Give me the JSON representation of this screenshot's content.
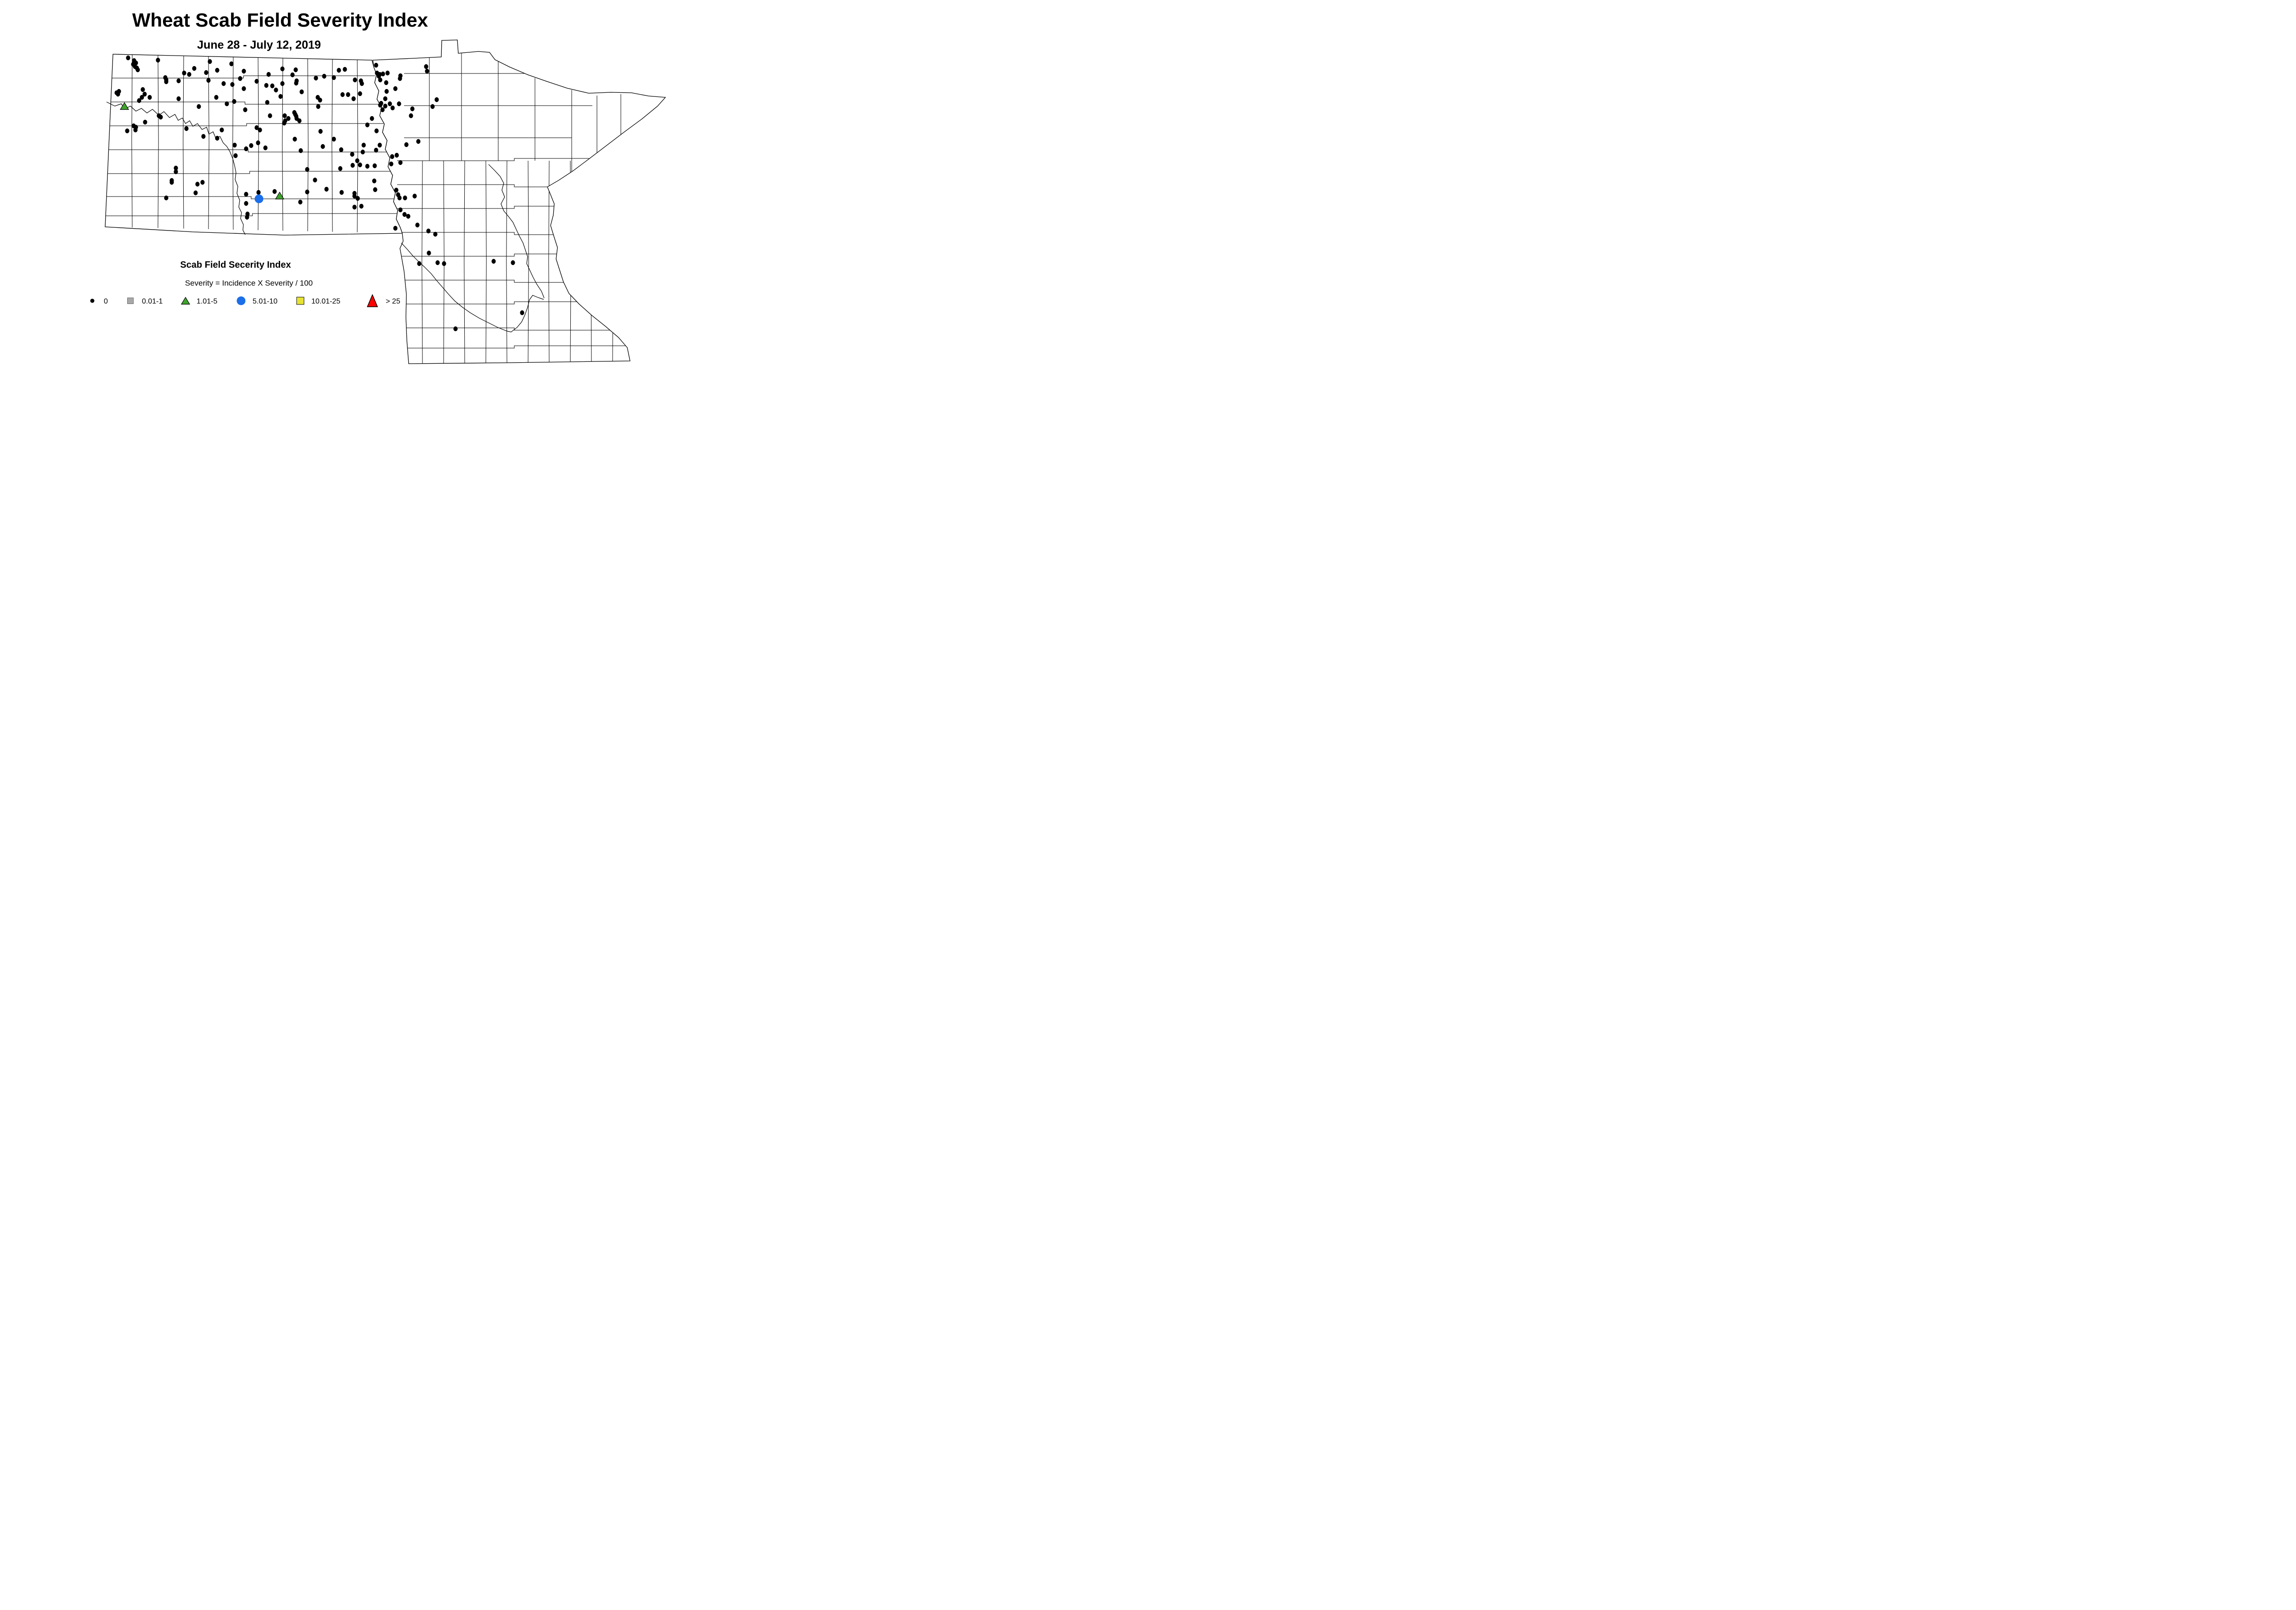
{
  "title": "Wheat Scab Field Severity Index",
  "subtitle": "June 28 - July 12, 2019",
  "legend": {
    "heading": "Scab Field Secerity Index",
    "formula": "Severity = Incidence X Severity / 100",
    "items": [
      {
        "label": "0",
        "shape": "dot",
        "color": "#000000"
      },
      {
        "label": "0.01-1",
        "shape": "square",
        "color": "#A8A8A8"
      },
      {
        "label": "1.01-5",
        "shape": "triangle",
        "color": "#3FA42C"
      },
      {
        "label": "5.01-10",
        "shape": "circle",
        "color": "#1B6FE8"
      },
      {
        "label": "10.01-25",
        "shape": "square",
        "color": "#E8E332"
      },
      {
        "label": "> 25",
        "shape": "triangle",
        "color": "#FF0000"
      }
    ]
  },
  "chart_data": {
    "type": "scatter",
    "subtype": "point-distribution-map",
    "title": "Wheat Scab Field Severity Index",
    "subtitle": "June 28 - July 12, 2019",
    "legend_position": "bottom-left",
    "series": [
      {
        "label": "0",
        "marker": "small-black-dot",
        "points": [
          [
            279,
            126
          ],
          [
            292,
            132
          ],
          [
            296,
            137
          ],
          [
            290,
            140
          ],
          [
            294,
            145
          ],
          [
            298,
            148
          ],
          [
            300,
            152
          ],
          [
            344,
            131
          ],
          [
            457,
            134
          ],
          [
            504,
            139
          ],
          [
            423,
            149
          ],
          [
            401,
            159
          ],
          [
            412,
            162
          ],
          [
            449,
            158
          ],
          [
            473,
            153
          ],
          [
            531,
            155
          ],
          [
            585,
            162
          ],
          [
            360,
            169
          ],
          [
            362,
            174
          ],
          [
            362,
            178
          ],
          [
            389,
            176
          ],
          [
            454,
            175
          ],
          [
            487,
            182
          ],
          [
            506,
            184
          ],
          [
            523,
            171
          ],
          [
            559,
            177
          ],
          [
            531,
            193
          ],
          [
            259,
            199
          ],
          [
            254,
            202
          ],
          [
            257,
            205
          ],
          [
            311,
            195
          ],
          [
            315,
            205
          ],
          [
            309,
            212
          ],
          [
            303,
            219
          ],
          [
            326,
            212
          ],
          [
            389,
            215
          ],
          [
            471,
            212
          ],
          [
            510,
            221
          ],
          [
            433,
            232
          ],
          [
            494,
            226
          ],
          [
            534,
            239
          ],
          [
            346,
            252
          ],
          [
            350,
            255
          ],
          [
            316,
            266
          ],
          [
            291,
            274
          ],
          [
            296,
            277
          ],
          [
            295,
            283
          ],
          [
            277,
            285
          ],
          [
            406,
            280
          ],
          [
            483,
            283
          ],
          [
            443,
            297
          ],
          [
            473,
            301
          ],
          [
            559,
            278
          ],
          [
            566,
            283
          ],
          [
            511,
            316
          ],
          [
            547,
            317
          ],
          [
            562,
            311
          ],
          [
            615,
            150
          ],
          [
            644,
            152
          ],
          [
            637,
            163
          ],
          [
            646,
            176
          ],
          [
            645,
            181
          ],
          [
            615,
            182
          ],
          [
            580,
            186
          ],
          [
            593,
            187
          ],
          [
            601,
            196
          ],
          [
            657,
            200
          ],
          [
            611,
            210
          ],
          [
            582,
            223
          ],
          [
            688,
            170
          ],
          [
            706,
            166
          ],
          [
            727,
            169
          ],
          [
            738,
            153
          ],
          [
            751,
            151
          ],
          [
            773,
            174
          ],
          [
            786,
            176
          ],
          [
            788,
            182
          ],
          [
            819,
            142
          ],
          [
            821,
            159
          ],
          [
            827,
            162
          ],
          [
            834,
            161
          ],
          [
            844,
            159
          ],
          [
            825,
            166
          ],
          [
            828,
            174
          ],
          [
            841,
            180
          ],
          [
            872,
            165
          ],
          [
            871,
            171
          ],
          [
            928,
            145
          ],
          [
            930,
            155
          ],
          [
            861,
            193
          ],
          [
            842,
            199
          ],
          [
            746,
            206
          ],
          [
            758,
            206
          ],
          [
            784,
            204
          ],
          [
            770,
            215
          ],
          [
            839,
            215
          ],
          [
            830,
            225
          ],
          [
            828,
            229
          ],
          [
            839,
            231
          ],
          [
            849,
            226
          ],
          [
            869,
            226
          ],
          [
            855,
            235
          ],
          [
            833,
            239
          ],
          [
            898,
            237
          ],
          [
            692,
            212
          ],
          [
            697,
            218
          ],
          [
            693,
            232
          ],
          [
            895,
            252
          ],
          [
            588,
            252
          ],
          [
            620,
            252
          ],
          [
            628,
            258
          ],
          [
            641,
            245
          ],
          [
            643,
            249
          ],
          [
            645,
            253
          ],
          [
            646,
            258
          ],
          [
            652,
            263
          ],
          [
            621,
            263
          ],
          [
            619,
            268
          ],
          [
            810,
            258
          ],
          [
            800,
            272
          ],
          [
            820,
            285
          ],
          [
            698,
            286
          ],
          [
            642,
            303
          ],
          [
            727,
            303
          ],
          [
            792,
            316
          ],
          [
            827,
            316
          ],
          [
            885,
            315
          ],
          [
            911,
            308
          ],
          [
            951,
            217
          ],
          [
            942,
            232
          ],
          [
            536,
            324
          ],
          [
            578,
            322
          ],
          [
            513,
            339
          ],
          [
            383,
            366
          ],
          [
            383,
            374
          ],
          [
            374,
            393
          ],
          [
            374,
            397
          ],
          [
            430,
            401
          ],
          [
            441,
            397
          ],
          [
            426,
            420
          ],
          [
            362,
            431
          ],
          [
            536,
            423
          ],
          [
            563,
            419
          ],
          [
            536,
            443
          ],
          [
            539,
            466
          ],
          [
            538,
            473
          ],
          [
            655,
            328
          ],
          [
            703,
            319
          ],
          [
            743,
            326
          ],
          [
            767,
            336
          ],
          [
            790,
            331
          ],
          [
            819,
            327
          ],
          [
            778,
            350
          ],
          [
            768,
            360
          ],
          [
            784,
            359
          ],
          [
            800,
            362
          ],
          [
            816,
            361
          ],
          [
            854,
            341
          ],
          [
            864,
            338
          ],
          [
            852,
            357
          ],
          [
            872,
            354
          ],
          [
            669,
            369
          ],
          [
            741,
            367
          ],
          [
            686,
            392
          ],
          [
            815,
            394
          ],
          [
            669,
            418
          ],
          [
            711,
            412
          ],
          [
            744,
            419
          ],
          [
            817,
            413
          ],
          [
            598,
            417
          ],
          [
            772,
            421
          ],
          [
            772,
            427
          ],
          [
            779,
            432
          ],
          [
            863,
            414
          ],
          [
            867,
            424
          ],
          [
            870,
            431
          ],
          [
            882,
            431
          ],
          [
            903,
            427
          ],
          [
            654,
            440
          ],
          [
            772,
            451
          ],
          [
            787,
            449
          ],
          [
            872,
            457
          ],
          [
            881,
            467
          ],
          [
            889,
            471
          ],
          [
            909,
            490
          ],
          [
            861,
            497
          ],
          [
            933,
            503
          ],
          [
            948,
            510
          ],
          [
            934,
            551
          ],
          [
            913,
            574
          ],
          [
            953,
            572
          ],
          [
            967,
            574
          ],
          [
            1075,
            569
          ],
          [
            1117,
            572
          ],
          [
            1137,
            681
          ],
          [
            992,
            716
          ]
        ]
      },
      {
        "label": "0.01-1",
        "marker": "gray-square",
        "points": []
      },
      {
        "label": "1.01-5",
        "marker": "green-triangle",
        "points": [
          [
            271,
            231
          ],
          [
            609,
            426
          ]
        ]
      },
      {
        "label": "5.01-10",
        "marker": "blue-circle",
        "points": [
          [
            564,
            433
          ]
        ]
      },
      {
        "label": "10.01-25",
        "marker": "yellow-square",
        "points": []
      },
      {
        "label": "> 25",
        "marker": "red-triangle",
        "points": []
      }
    ]
  }
}
